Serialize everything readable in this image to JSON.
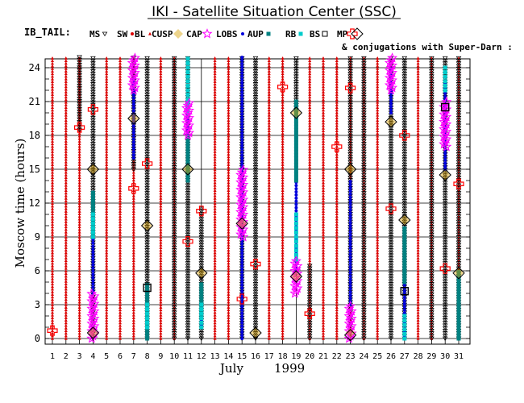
{
  "chart_data": {
    "type": "scatter",
    "title": "IKI - Satellite Situation Center (SSC)",
    "legend_prefix": "IB_TAIL:",
    "legend_items": [
      {
        "name": "MS",
        "symbol": "triangle-down-open",
        "color": "#000000"
      },
      {
        "name": "SW",
        "symbol": "dot",
        "color": "#dd0000"
      },
      {
        "name": "BL",
        "symbol": "triangle",
        "color": "#dd0000"
      },
      {
        "name": "CUSP",
        "symbol": "diamond-filled",
        "color": "#d8a000"
      },
      {
        "name": "CAP",
        "symbol": "star-open",
        "color": "#ff00ff"
      },
      {
        "name": "LOBS",
        "symbol": "dot",
        "color": "#0000dd"
      },
      {
        "name": "AUP",
        "symbol": "square-filled",
        "color": "#008080"
      },
      {
        "name": "RB",
        "symbol": "square-filled",
        "color": "#00cccc"
      },
      {
        "name": "BS",
        "symbol": "square-open",
        "color": "#000000"
      },
      {
        "name": "MP",
        "symbol": "cross-open",
        "color": "#ff0000"
      },
      {
        "name": "",
        "symbol": "diamond-open",
        "color": "#000000"
      }
    ],
    "conjugation_note": "& conjugations with Super-Darn :",
    "xlabel_month": "July",
    "xlabel_year": "1999",
    "ylabel": "Moscow time (hours)",
    "xlim": [
      1,
      31
    ],
    "ylim": [
      0,
      25
    ],
    "xticks": [
      1,
      2,
      3,
      4,
      5,
      6,
      7,
      8,
      9,
      10,
      11,
      12,
      13,
      14,
      15,
      16,
      17,
      18,
      19,
      20,
      21,
      22,
      23,
      24,
      25,
      26,
      27,
      28,
      29,
      30,
      31
    ],
    "yticks": [
      0,
      3,
      6,
      9,
      12,
      15,
      18,
      21,
      24
    ],
    "grid": true,
    "bl_days": [
      1,
      2,
      3,
      5,
      6,
      7,
      9,
      10,
      13,
      14,
      17,
      18,
      20,
      21,
      22,
      23,
      24,
      25,
      28,
      29,
      31
    ],
    "series": [
      {
        "name": "MS",
        "color": "#000000",
        "segments": [
          [
            3,
            18.5,
            25
          ],
          [
            4,
            0,
            25
          ],
          [
            7,
            15,
            25
          ],
          [
            8,
            0,
            25
          ],
          [
            10,
            0,
            25
          ],
          [
            11,
            0,
            25
          ],
          [
            12,
            0,
            11.5
          ],
          [
            15,
            0,
            25
          ],
          [
            16,
            0,
            25
          ],
          [
            19,
            20,
            25
          ],
          [
            20,
            0,
            6.5
          ],
          [
            23,
            0,
            25
          ],
          [
            24,
            0,
            25
          ],
          [
            26,
            0,
            25
          ],
          [
            27,
            0,
            25
          ],
          [
            29,
            0,
            25
          ],
          [
            30,
            0,
            25
          ],
          [
            31,
            0,
            25
          ]
        ]
      },
      {
        "name": "LOBS",
        "color": "#0000dd",
        "segments": [
          [
            4,
            4,
            13
          ],
          [
            7,
            16,
            23
          ],
          [
            11,
            14,
            21
          ],
          [
            12,
            1,
            4
          ],
          [
            15,
            0,
            25
          ],
          [
            19,
            6,
            21
          ],
          [
            23,
            3,
            14
          ],
          [
            26,
            20,
            24
          ],
          [
            27,
            0,
            10
          ],
          [
            30,
            15,
            23
          ]
        ]
      },
      {
        "name": "AUP",
        "color": "#008080",
        "segments": [
          [
            4,
            9,
            13
          ],
          [
            8,
            0,
            5
          ],
          [
            11,
            14,
            18
          ],
          [
            12,
            2,
            5
          ],
          [
            19,
            14,
            21
          ],
          [
            27,
            5,
            10
          ],
          [
            31,
            0,
            6
          ]
        ]
      },
      {
        "name": "RB",
        "color": "#00cccc",
        "segments": [
          [
            4,
            9,
            11
          ],
          [
            8,
            1,
            3
          ],
          [
            11,
            20,
            25
          ],
          [
            12,
            1,
            3
          ],
          [
            19,
            7,
            11
          ],
          [
            27,
            0,
            2
          ],
          [
            30,
            22,
            24
          ]
        ]
      },
      {
        "name": "CAP",
        "color": "#ff00ff",
        "segments": [
          [
            4,
            0,
            4
          ],
          [
            7,
            22,
            25
          ],
          [
            11,
            18,
            21
          ],
          [
            15,
            9,
            15
          ],
          [
            19,
            4,
            7
          ],
          [
            23,
            0,
            3
          ],
          [
            26,
            22,
            25
          ],
          [
            30,
            17,
            21
          ]
        ]
      },
      {
        "name": "CUSP",
        "color": "#d8a000",
        "points": [
          [
            4,
            0.5
          ],
          [
            4,
            15
          ],
          [
            7,
            19.5
          ],
          [
            8,
            10
          ],
          [
            11,
            15
          ],
          [
            12,
            5.8
          ],
          [
            15,
            10.2
          ],
          [
            16,
            0.5
          ],
          [
            19,
            5.5
          ],
          [
            19,
            20
          ],
          [
            23,
            15
          ],
          [
            23,
            0.5
          ],
          [
            26,
            19.2
          ],
          [
            27,
            10.5
          ],
          [
            30,
            14.5
          ],
          [
            31,
            5.8
          ]
        ]
      },
      {
        "name": "CUSP_OPEN",
        "color": "#000000",
        "points": [
          [
            4,
            0.5
          ],
          [
            4,
            15
          ],
          [
            7,
            19.5
          ],
          [
            8,
            10
          ],
          [
            11,
            15
          ],
          [
            12,
            5.8
          ],
          [
            15,
            10.2
          ],
          [
            16,
            0.5
          ],
          [
            19,
            5.5
          ],
          [
            19,
            20
          ],
          [
            23,
            15
          ],
          [
            23,
            0.3
          ],
          [
            26,
            19.2
          ],
          [
            27,
            10.5
          ],
          [
            30,
            14.5
          ],
          [
            31,
            5.8
          ]
        ]
      },
      {
        "name": "MP",
        "color": "#ff0000",
        "points": [
          [
            1,
            0.7
          ],
          [
            3,
            18.7
          ],
          [
            4,
            20.3
          ],
          [
            7,
            13.3
          ],
          [
            8,
            15.5
          ],
          [
            11,
            8.6
          ],
          [
            12,
            11.3
          ],
          [
            15,
            3.5
          ],
          [
            16,
            6.6
          ],
          [
            18,
            22.3
          ],
          [
            20,
            2.2
          ],
          [
            22,
            17
          ],
          [
            23,
            22.2
          ],
          [
            26,
            11.5
          ],
          [
            27,
            18
          ],
          [
            30,
            6.2
          ],
          [
            31,
            13.7
          ]
        ]
      },
      {
        "name": "BS",
        "color": "#000000",
        "points": [
          [
            8,
            4.5
          ],
          [
            27,
            4.2
          ],
          [
            30,
            20.5
          ]
        ]
      }
    ]
  }
}
